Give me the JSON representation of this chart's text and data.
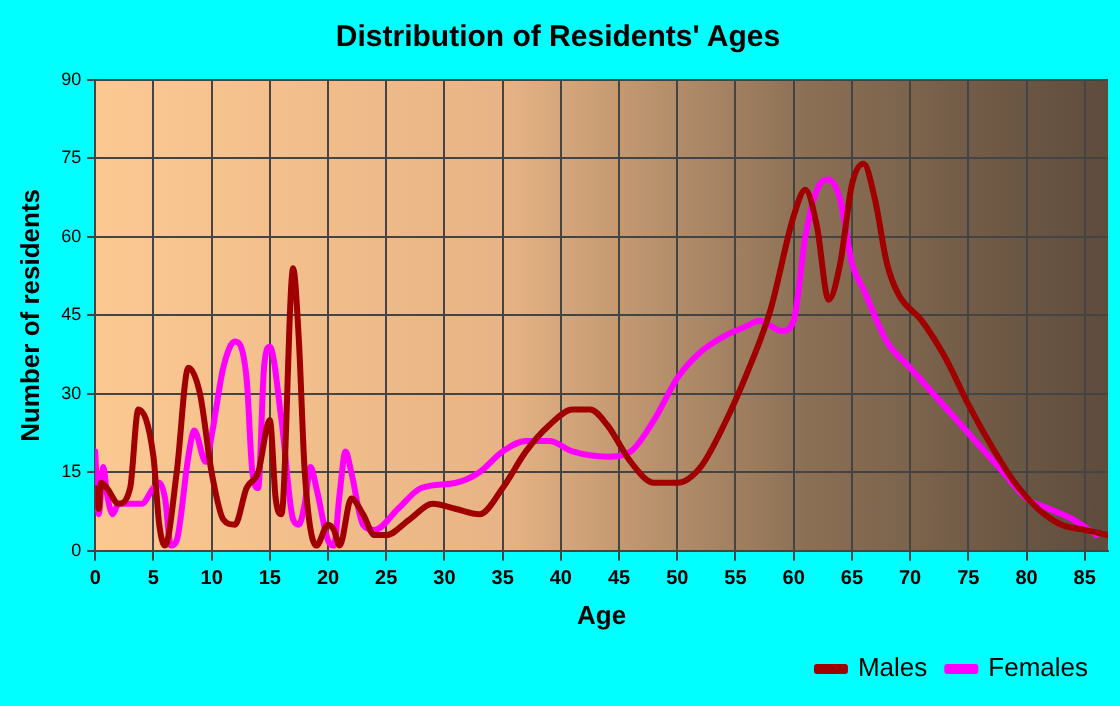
{
  "chart_data": {
    "type": "line",
    "title": "Distribution of Residents' Ages",
    "xlabel": "Age",
    "ylabel": "Number of residents",
    "xlim": [
      0,
      87
    ],
    "xticks": [
      0,
      5,
      10,
      15,
      20,
      25,
      30,
      35,
      40,
      45,
      50,
      55,
      60,
      65,
      70,
      75,
      80,
      85
    ],
    "ylim": [
      0,
      90
    ],
    "yticks": [
      0,
      15,
      30,
      45,
      60,
      75,
      90
    ],
    "grid": true,
    "legend": "bottom right",
    "marker": "none",
    "line_style": "solid",
    "series": [
      {
        "name": "Males",
        "color": "#a00000",
        "x": [
          0,
          0.3,
          0.5,
          1,
          2,
          3,
          3.7,
          5,
          5.5,
          6,
          7,
          8,
          9,
          10,
          11,
          12,
          13,
          14,
          15,
          15.5,
          16,
          17,
          17.5,
          18,
          19,
          20,
          20.5,
          21,
          22,
          23,
          24,
          25,
          27,
          29,
          31,
          33,
          35,
          37,
          39,
          41,
          42.5,
          44,
          46,
          48,
          50,
          52,
          54,
          56,
          58,
          60,
          61,
          62,
          63,
          64,
          65,
          66,
          67,
          68,
          69,
          71,
          73,
          75,
          77,
          79,
          81,
          83,
          85,
          87
        ],
        "values": [
          12,
          8,
          13,
          12,
          9,
          12,
          27,
          18,
          5,
          1,
          15,
          35,
          30,
          15,
          6,
          5,
          12,
          15,
          25,
          10,
          7,
          54,
          40,
          15,
          1,
          5,
          4,
          1,
          10,
          7,
          3,
          3,
          6,
          9,
          8,
          7,
          12,
          19,
          24,
          27,
          27,
          24,
          17,
          13,
          13,
          16,
          24,
          34,
          46,
          64,
          69,
          62,
          48,
          55,
          70,
          74,
          67,
          55,
          49,
          44,
          37,
          28,
          20,
          13,
          8,
          5,
          4,
          3
        ]
      },
      {
        "name": "Females",
        "color": "#ff00ff",
        "x": [
          0,
          0.3,
          0.7,
          1,
          1.5,
          2,
          3,
          4,
          5,
          5.5,
          6,
          6.5,
          7,
          8,
          8.5,
          9.5,
          10,
          11,
          12,
          13,
          13.5,
          14,
          14.5,
          15,
          16,
          17,
          17.5,
          18,
          18.5,
          19,
          20,
          20.5,
          21,
          21.5,
          22,
          23,
          24,
          26,
          28,
          31,
          33,
          35,
          37,
          39,
          41,
          44,
          46,
          48,
          50,
          52,
          54,
          56,
          57,
          59,
          60,
          61,
          62,
          63,
          64,
          65,
          66,
          68,
          70,
          72,
          74,
          76,
          78,
          80,
          82,
          84,
          86
        ],
        "values": [
          19,
          7,
          16,
          11,
          7,
          9,
          9,
          9,
          12,
          13,
          10,
          1,
          2,
          18,
          23,
          17,
          22,
          35,
          40,
          33,
          15,
          12,
          35,
          39,
          25,
          6,
          5,
          9,
          16,
          12,
          2,
          1,
          11,
          19,
          15,
          5,
          4,
          8,
          12,
          13,
          15,
          19,
          21,
          21,
          19,
          18,
          19,
          25,
          33,
          38,
          41,
          43,
          44,
          42,
          44,
          60,
          69,
          71,
          67,
          55,
          50,
          40,
          35,
          30,
          25,
          20,
          15,
          10,
          8,
          6,
          3
        ]
      }
    ]
  }
}
